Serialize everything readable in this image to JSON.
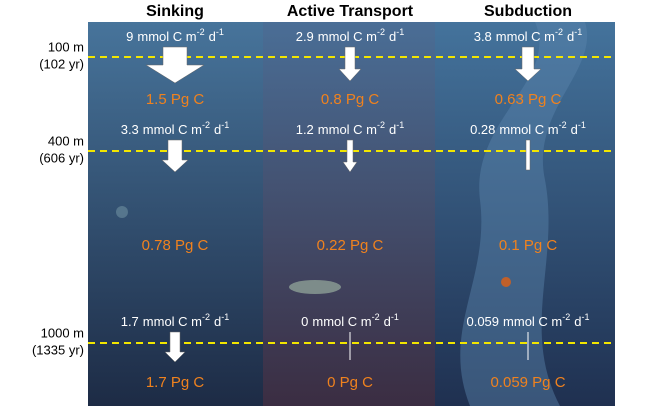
{
  "columns": [
    {
      "title": "Sinking",
      "fluxes": [
        "9",
        "3.3",
        "1.7"
      ],
      "stocks": [
        "1.5 Pg C",
        "0.78 Pg C",
        "1.7 Pg C"
      ]
    },
    {
      "title": "Active Transport",
      "fluxes": [
        "2.9",
        "1.2",
        "0"
      ],
      "stocks": [
        "0.8 Pg C",
        "0.22 Pg C",
        "0 Pg C"
      ]
    },
    {
      "title": "Subduction",
      "fluxes": [
        "3.8",
        "0.28",
        "0.059"
      ],
      "stocks": [
        "0.63 Pg C",
        "0.1 Pg C",
        "0.059 Pg C"
      ]
    }
  ],
  "flux_unit": {
    "base": "mmol C m",
    "exp1": "-2",
    "mid": "d",
    "exp2": "-1"
  },
  "depths": [
    {
      "depth": "100 m",
      "age": "(102 yr)"
    },
    {
      "depth": "400 m",
      "age": "(606 yr)"
    },
    {
      "depth": "1000 m",
      "age": "(1335 yr)"
    }
  ]
}
